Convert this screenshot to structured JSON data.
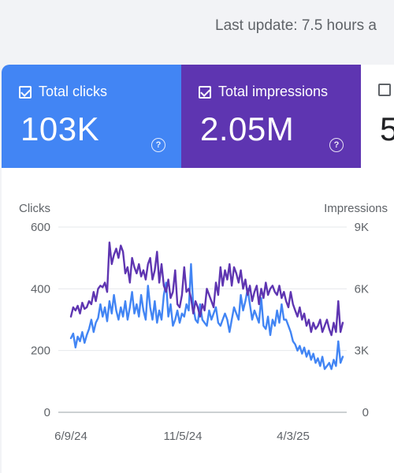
{
  "header": {
    "last_update": "Last update: 7.5 hours a"
  },
  "cards": {
    "clicks": {
      "label": "Total clicks",
      "value": "103K",
      "checked": true,
      "color": "#4285f4"
    },
    "impressions": {
      "label": "Total impressions",
      "value": "2.05M",
      "checked": true,
      "color": "#5e35b1"
    },
    "third": {
      "value": "5",
      "checked": false
    }
  },
  "help_icon": "?",
  "chart_data": {
    "type": "line",
    "left_axis": {
      "title": "Clicks",
      "ticks": [
        "600",
        "400",
        "200",
        "0"
      ],
      "ylim": [
        0,
        600
      ]
    },
    "right_axis": {
      "title": "Impressions",
      "ticks": [
        "9K",
        "6K",
        "3K",
        "0"
      ],
      "ylim": [
        0,
        9000
      ]
    },
    "x_ticks": [
      "6/9/24",
      "11/5/24",
      "4/3/25"
    ],
    "grid": true,
    "series": [
      {
        "color": "#4285f4",
        "axis": "left",
        "values": [
          240,
          255,
          210,
          245,
          230,
          260,
          225,
          250,
          270,
          300,
          260,
          290,
          305,
          350,
          310,
          340,
          295,
          360,
          320,
          380,
          330,
          300,
          340,
          310,
          360,
          300,
          340,
          390,
          320,
          350,
          310,
          380,
          330,
          300,
          410,
          340,
          300,
          360,
          290,
          330,
          300,
          380,
          420,
          310,
          350,
          280,
          300,
          330,
          290,
          320,
          310,
          350,
          330,
          480,
          340,
          300,
          290,
          350,
          300,
          290,
          280,
          330,
          300,
          320,
          340,
          290,
          280,
          300,
          320,
          300,
          260,
          300,
          340,
          320,
          300,
          380,
          330,
          360,
          400,
          350,
          300,
          330,
          310,
          290,
          370,
          280,
          270,
          310,
          250,
          300,
          280,
          330,
          290,
          350,
          300,
          300,
          280,
          260,
          230,
          220,
          200,
          215,
          190,
          210,
          180,
          200,
          170,
          190,
          160,
          175,
          150,
          180,
          140,
          150,
          160,
          140,
          170,
          150,
          230,
          160,
          180
        ]
      },
      {
        "color": "#5e35b1",
        "axis": "left",
        "values": [
          310,
          340,
          330,
          345,
          320,
          355,
          335,
          340,
          360,
          350,
          390,
          360,
          400,
          410,
          405,
          420,
          390,
          550,
          480,
          510,
          530,
          500,
          540,
          520,
          450,
          470,
          420,
          500,
          470,
          450,
          480,
          440,
          460,
          430,
          480,
          500,
          430,
          460,
          520,
          420,
          480,
          410,
          390,
          430,
          370,
          390,
          460,
          350,
          340,
          380,
          470,
          390,
          400,
          370,
          320,
          360,
          340,
          310,
          350,
          330,
          400,
          380,
          360,
          340,
          420,
          380,
          470,
          410,
          460,
          430,
          480,
          410,
          470,
          450,
          420,
          460,
          400,
          430,
          380,
          410,
          360,
          390,
          410,
          350,
          400,
          370,
          420,
          380,
          400,
          410,
          390,
          380,
          410,
          370,
          390,
          360,
          340,
          390,
          350,
          330,
          310,
          340,
          300,
          320,
          280,
          300,
          260,
          290,
          270,
          280,
          300,
          260,
          280,
          300,
          270,
          250,
          290,
          260,
          360,
          260,
          290
        ]
      }
    ]
  }
}
